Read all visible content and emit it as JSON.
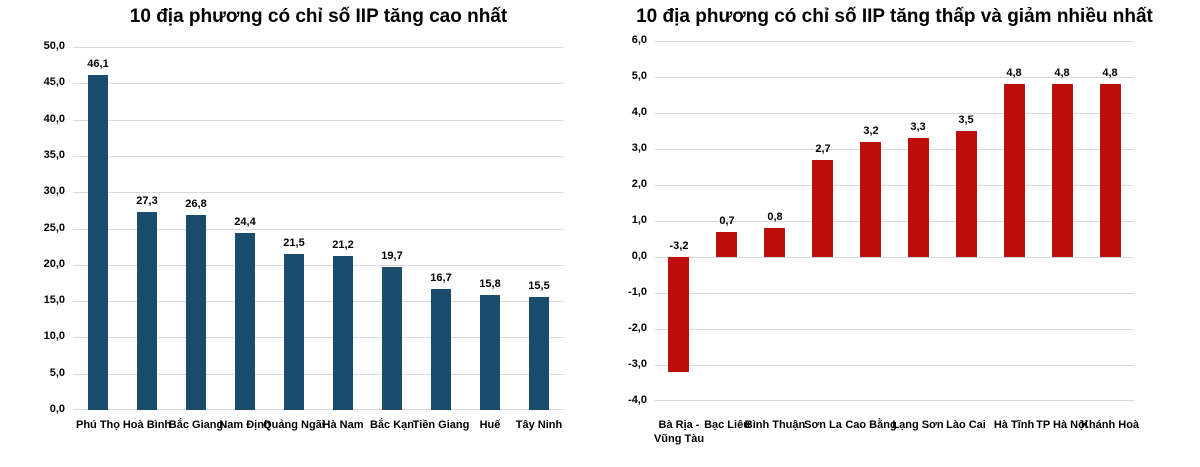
{
  "colors": {
    "background": "#ffffff",
    "gridline": "#d9d9d9",
    "text": "#000000",
    "blue_bar": "#1a4d6b",
    "red_bar": "#be0e0e"
  },
  "chart_data": [
    {
      "type": "bar",
      "title": "10 địa phương có chỉ số IIP tăng cao nhất",
      "categories": [
        "Phú Thọ",
        "Hoà Bình",
        "Bắc Giang",
        "Nam Định",
        "Quảng Ngãi",
        "Hà Nam",
        "Bắc Kạn",
        "Tiền Giang",
        "Huế",
        "Tây Ninh"
      ],
      "values": [
        46.1,
        27.3,
        26.8,
        24.4,
        21.5,
        21.2,
        19.7,
        16.7,
        15.8,
        15.5
      ],
      "value_labels": [
        "46,1",
        "27,3",
        "26,8",
        "24,4",
        "21,5",
        "21,2",
        "19,7",
        "16,7",
        "15,8",
        "15,5"
      ],
      "xlabel": "",
      "ylabel": "",
      "ylim": [
        0,
        50
      ],
      "ytick_labels": [
        "50,0",
        "45,0",
        "40,0",
        "35,0",
        "30,0",
        "25,0",
        "20,0",
        "15,0",
        "10,0",
        "5,0",
        "0,0"
      ],
      "grid": true,
      "legend": "none",
      "bar_color": "#1a4d6b"
    },
    {
      "type": "bar",
      "title": "10 địa phương có chỉ số IIP tăng thấp và giảm nhiều nhất",
      "categories": [
        "Bà Rịa -\nVũng Tàu",
        "Bạc Liêu",
        "Bình Thuận",
        "Sơn La",
        "Cao Bằng",
        "Lạng Sơn",
        "Lào Cai",
        "Hà Tĩnh",
        "TP Hà Nội",
        "Khánh Hoà"
      ],
      "values": [
        -3.2,
        0.7,
        0.8,
        2.7,
        3.2,
        3.3,
        3.5,
        4.8,
        4.8,
        4.8
      ],
      "value_labels": [
        "-3,2",
        "0,7",
        "0,8",
        "2,7",
        "3,2",
        "3,3",
        "3,5",
        "4,8",
        "4,8",
        "4,8"
      ],
      "xlabel": "",
      "ylabel": "",
      "ylim": [
        -4,
        6
      ],
      "ytick_labels": [
        "6,0",
        "5,0",
        "4,0",
        "3,0",
        "2,0",
        "1,0",
        "0,0",
        "-1,0",
        "-2,0",
        "-3,0",
        "-4,0"
      ],
      "grid": true,
      "legend": "none",
      "bar_color": "#be0e0e"
    }
  ]
}
